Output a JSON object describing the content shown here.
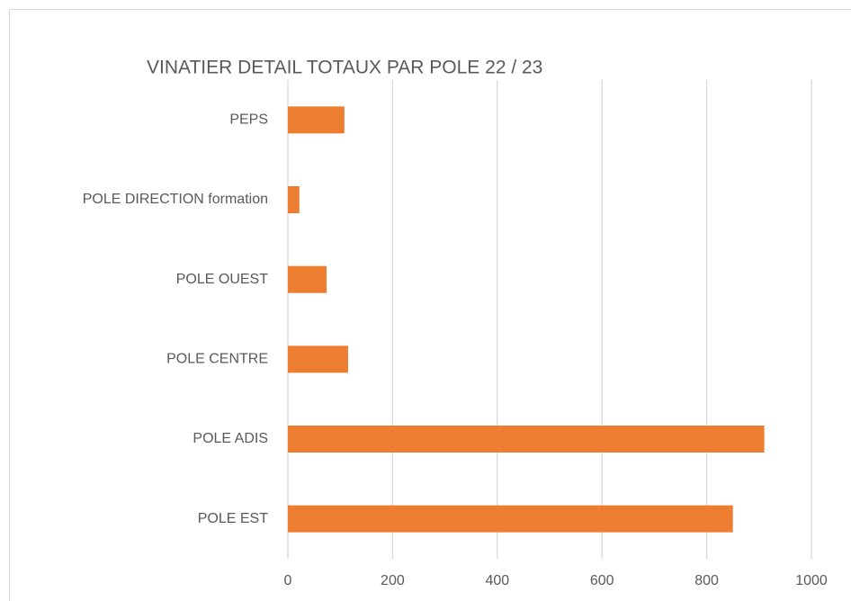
{
  "chart_data": {
    "type": "bar",
    "orientation": "horizontal",
    "title": "VINATIER DETAIL TOTAUX PAR POLE 22 / 23",
    "categories": [
      "PEPS",
      "POLE DIRECTION formation",
      "POLE OUEST",
      "POLE CENTRE",
      "POLE ADIS",
      "POLE EST"
    ],
    "values": [
      108,
      22,
      74,
      115,
      910,
      850
    ],
    "color": "#ed7d31",
    "xlim": [
      0,
      1000
    ],
    "xticks": [
      0,
      200,
      400,
      600,
      800,
      1000
    ],
    "grid": true
  }
}
